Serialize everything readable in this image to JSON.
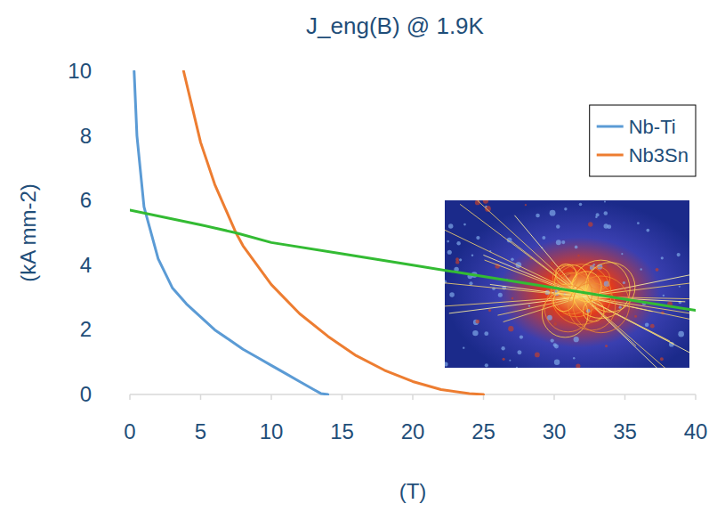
{
  "chart_data": {
    "type": "line",
    "title": "J_eng(B) @ 1.9K",
    "x_label": "(T)",
    "y_label": "(kA mm-2)",
    "xlim": [
      0,
      40
    ],
    "ylim": [
      0,
      10
    ],
    "xticks": [
      0,
      5,
      10,
      15,
      20,
      25,
      30,
      35,
      40
    ],
    "yticks": [
      0,
      2,
      4,
      6,
      8,
      10
    ],
    "grid": false,
    "legend": "upper right",
    "series": [
      {
        "name": "Nb-Ti",
        "color": "#5b9bd5",
        "x": [
          0.3,
          0.5,
          1,
          2,
          3,
          4,
          5,
          6,
          7,
          8,
          9,
          10,
          11,
          12,
          13,
          13.5,
          14
        ],
        "values": [
          10,
          8,
          5.8,
          4.2,
          3.3,
          2.8,
          2.4,
          2.0,
          1.7,
          1.4,
          1.15,
          0.9,
          0.65,
          0.4,
          0.15,
          0.03,
          0
        ]
      },
      {
        "name": "Nb3Sn",
        "color": "#ed7d31",
        "x": [
          3.8,
          5,
          6,
          7,
          7.5,
          8,
          10,
          12,
          14,
          16,
          18,
          20,
          22,
          24,
          25
        ],
        "values": [
          10,
          7.8,
          6.5,
          5.5,
          5.0,
          4.6,
          3.4,
          2.5,
          1.8,
          1.2,
          0.75,
          0.4,
          0.15,
          0.03,
          0
        ]
      },
      {
        "color": "#33bb33",
        "x": [
          0,
          5,
          7.5,
          10,
          15,
          20,
          25,
          30,
          35,
          40
        ],
        "values": [
          5.7,
          5.25,
          5.0,
          4.7,
          4.35,
          4.0,
          3.65,
          3.3,
          2.95,
          2.6
        ]
      }
    ]
  }
}
